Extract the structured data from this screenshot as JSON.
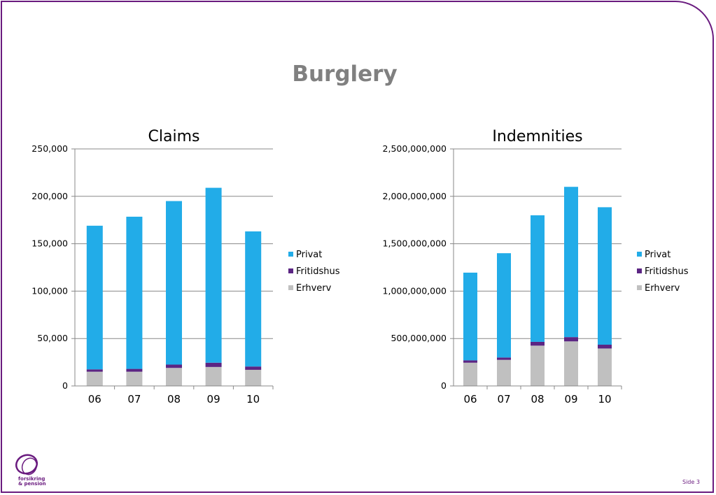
{
  "slide": {
    "title": "Burglery",
    "page_label": "Side 3",
    "logo_text_line1": "forsikring",
    "logo_text_line2": "& pension"
  },
  "colors": {
    "Privat": "#22ace8",
    "Fritidshus": "#5b2583",
    "Erhverv": "#c0c0c0",
    "frame": "#6a1b7f",
    "title": "#808080"
  },
  "chart_data": [
    {
      "type": "bar",
      "stacked": true,
      "title": "Claims",
      "categories": [
        "06",
        "07",
        "08",
        "09",
        "10"
      ],
      "ylim": [
        0,
        250000
      ],
      "yticks": [
        "0",
        "50,000",
        "100,000",
        "150,000",
        "200,000",
        "250,000"
      ],
      "grid": true,
      "legend": "right",
      "series": [
        {
          "name": "Erhverv",
          "values": [
            15000,
            15000,
            19000,
            20000,
            17000
          ]
        },
        {
          "name": "Fritidshus",
          "values": [
            2500,
            3000,
            3500,
            4500,
            3500
          ]
        },
        {
          "name": "Privat",
          "values": [
            151500,
            160500,
            172500,
            184500,
            142500
          ]
        }
      ]
    },
    {
      "type": "bar",
      "stacked": true,
      "title": "Indemnities",
      "categories": [
        "06",
        "07",
        "08",
        "09",
        "10"
      ],
      "ylim": [
        0,
        2500000000
      ],
      "yticks": [
        "0",
        "500,000,000",
        "1,000,000,000",
        "1,500,000,000",
        "2,000,000,000",
        "2,500,000,000"
      ],
      "grid": true,
      "legend": "right",
      "series": [
        {
          "name": "Erhverv",
          "values": [
            245000000,
            275000000,
            425000000,
            470000000,
            395000000
          ]
        },
        {
          "name": "Fritidshus",
          "values": [
            25000000,
            25000000,
            40000000,
            45000000,
            40000000
          ]
        },
        {
          "name": "Privat",
          "values": [
            925000000,
            1100000000,
            1335000000,
            1585000000,
            1450000000
          ]
        }
      ]
    }
  ]
}
